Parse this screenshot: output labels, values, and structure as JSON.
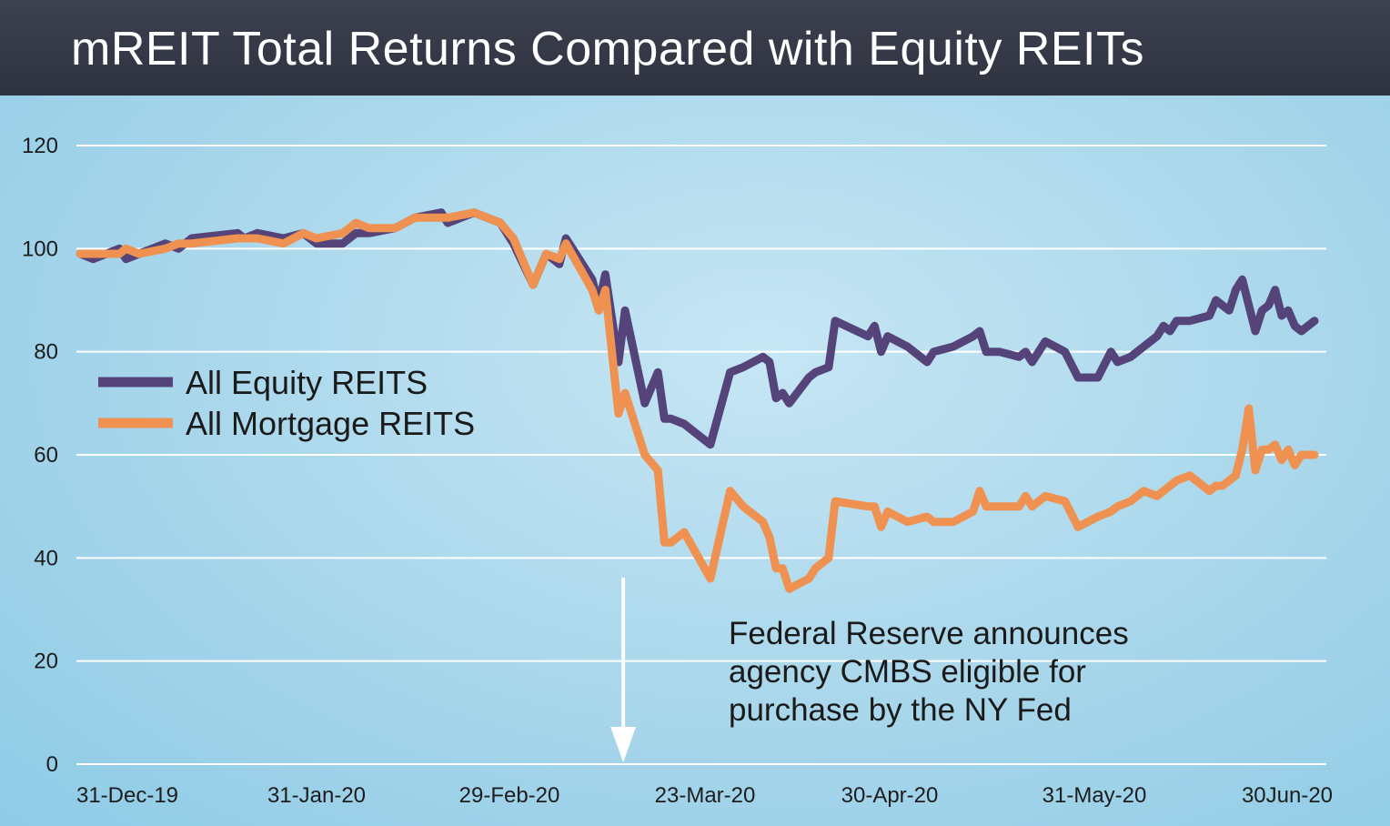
{
  "title": "mREIT Total Returns Compared with Equity REITs",
  "colors": {
    "equity": "#54447a",
    "mortgage": "#ef9150",
    "grid": "#ffffff",
    "arrow": "#ffffff"
  },
  "chart_data": {
    "type": "line",
    "title": "mREIT Total Returns Compared with Equity REITs",
    "xlabel": "",
    "ylabel": "",
    "ylim": [
      0,
      120
    ],
    "yticks": [
      0,
      20,
      40,
      60,
      80,
      100,
      120
    ],
    "xlim": [
      "2019-12-31",
      "2020-07-06"
    ],
    "x_tick_labels": [
      {
        "date": "2019-12-31",
        "label": "31-Dec-19"
      },
      {
        "date": "2020-01-31",
        "label": "31-Jan-20"
      },
      {
        "date": "2020-02-29",
        "label": "29-Feb-20"
      },
      {
        "date": "2020-03-23",
        "label": "23-Mar-20"
      },
      {
        "date": "2020-04-30",
        "label": "30-Apr-20"
      },
      {
        "date": "2020-05-31",
        "label": "31-May-20"
      },
      {
        "date": "2020-06-30",
        "label": "30Jun-20"
      }
    ],
    "grid": true,
    "legend": "left-center",
    "series": [
      {
        "name": "All Equity REITS",
        "points": [
          [
            "2019-12-31",
            99
          ],
          [
            "2020-01-02",
            98
          ],
          [
            "2020-01-06",
            100
          ],
          [
            "2020-01-07",
            98
          ],
          [
            "2020-01-09",
            99
          ],
          [
            "2020-01-13",
            101
          ],
          [
            "2020-01-15",
            100
          ],
          [
            "2020-01-17",
            102
          ],
          [
            "2020-01-24",
            103
          ],
          [
            "2020-01-25",
            102
          ],
          [
            "2020-01-27",
            103
          ],
          [
            "2020-01-31",
            102
          ],
          [
            "2020-02-03",
            103
          ],
          [
            "2020-02-05",
            101
          ],
          [
            "2020-02-09",
            101
          ],
          [
            "2020-02-11",
            103
          ],
          [
            "2020-02-13",
            103
          ],
          [
            "2020-02-17",
            104
          ],
          [
            "2020-02-20",
            106
          ],
          [
            "2020-02-24",
            107
          ],
          [
            "2020-02-25",
            105
          ],
          [
            "2020-02-29",
            107
          ],
          [
            "2020-03-04",
            105
          ],
          [
            "2020-03-06",
            101
          ],
          [
            "2020-03-09",
            93
          ],
          [
            "2020-03-11",
            99
          ],
          [
            "2020-03-13",
            97
          ],
          [
            "2020-03-14",
            102
          ],
          [
            "2020-03-18",
            94
          ],
          [
            "2020-03-19",
            89
          ],
          [
            "2020-03-20",
            95
          ],
          [
            "2020-03-22",
            78
          ],
          [
            "2020-03-23",
            88
          ],
          [
            "2020-03-26",
            70
          ],
          [
            "2020-03-28",
            76
          ],
          [
            "2020-03-29",
            67
          ],
          [
            "2020-03-30",
            67
          ],
          [
            "2020-04-01",
            66
          ],
          [
            "2020-04-05",
            62
          ],
          [
            "2020-04-08",
            76
          ],
          [
            "2020-04-10",
            77
          ],
          [
            "2020-04-13",
            79
          ],
          [
            "2020-04-14",
            78
          ],
          [
            "2020-04-15",
            71
          ],
          [
            "2020-04-16",
            72
          ],
          [
            "2020-04-17",
            70
          ],
          [
            "2020-04-20",
            75
          ],
          [
            "2020-04-21",
            76
          ],
          [
            "2020-04-23",
            77
          ],
          [
            "2020-04-24",
            86
          ],
          [
            "2020-04-29",
            83
          ],
          [
            "2020-04-30",
            85
          ],
          [
            "2020-05-01",
            80
          ],
          [
            "2020-05-02",
            83
          ],
          [
            "2020-05-05",
            81
          ],
          [
            "2020-05-08",
            78
          ],
          [
            "2020-05-09",
            80
          ],
          [
            "2020-05-12",
            81
          ],
          [
            "2020-05-15",
            83
          ],
          [
            "2020-05-16",
            84
          ],
          [
            "2020-05-17",
            80
          ],
          [
            "2020-05-19",
            80
          ],
          [
            "2020-05-22",
            79
          ],
          [
            "2020-05-23",
            80
          ],
          [
            "2020-05-24",
            78
          ],
          [
            "2020-05-26",
            82
          ],
          [
            "2020-05-29",
            80
          ],
          [
            "2020-05-31",
            75
          ],
          [
            "2020-06-03",
            75
          ],
          [
            "2020-06-05",
            80
          ],
          [
            "2020-06-06",
            78
          ],
          [
            "2020-06-08",
            79
          ],
          [
            "2020-06-10",
            81
          ],
          [
            "2020-06-12",
            83
          ],
          [
            "2020-06-13",
            85
          ],
          [
            "2020-06-14",
            84
          ],
          [
            "2020-06-15",
            86
          ],
          [
            "2020-06-17",
            86
          ],
          [
            "2020-06-20",
            87
          ],
          [
            "2020-06-21",
            90
          ],
          [
            "2020-06-22",
            89
          ],
          [
            "2020-06-23",
            88
          ],
          [
            "2020-06-24",
            92
          ],
          [
            "2020-06-25",
            94
          ],
          [
            "2020-06-26",
            89
          ],
          [
            "2020-06-27",
            84
          ],
          [
            "2020-06-28",
            88
          ],
          [
            "2020-06-29",
            89
          ],
          [
            "2020-06-30",
            92
          ],
          [
            "2020-07-01",
            87
          ],
          [
            "2020-07-02",
            88
          ],
          [
            "2020-07-03",
            85
          ],
          [
            "2020-07-04",
            84
          ],
          [
            "2020-07-05",
            85
          ],
          [
            "2020-07-06",
            86
          ]
        ]
      },
      {
        "name": "All Mortgage REITS",
        "points": [
          [
            "2019-12-31",
            99
          ],
          [
            "2020-01-02",
            99
          ],
          [
            "2020-01-06",
            99
          ],
          [
            "2020-01-07",
            100
          ],
          [
            "2020-01-09",
            99
          ],
          [
            "2020-01-13",
            100
          ],
          [
            "2020-01-15",
            101
          ],
          [
            "2020-01-17",
            101
          ],
          [
            "2020-01-24",
            102
          ],
          [
            "2020-01-25",
            102
          ],
          [
            "2020-01-27",
            102
          ],
          [
            "2020-01-31",
            101
          ],
          [
            "2020-02-03",
            103
          ],
          [
            "2020-02-05",
            102
          ],
          [
            "2020-02-09",
            103
          ],
          [
            "2020-02-11",
            105
          ],
          [
            "2020-02-13",
            104
          ],
          [
            "2020-02-17",
            104
          ],
          [
            "2020-02-20",
            106
          ],
          [
            "2020-02-24",
            106
          ],
          [
            "2020-02-25",
            106
          ],
          [
            "2020-02-29",
            107
          ],
          [
            "2020-03-04",
            105
          ],
          [
            "2020-03-06",
            102
          ],
          [
            "2020-03-09",
            93
          ],
          [
            "2020-03-11",
            99
          ],
          [
            "2020-03-13",
            98
          ],
          [
            "2020-03-14",
            101
          ],
          [
            "2020-03-18",
            92
          ],
          [
            "2020-03-19",
            88
          ],
          [
            "2020-03-20",
            92
          ],
          [
            "2020-03-22",
            68
          ],
          [
            "2020-03-23",
            72
          ],
          [
            "2020-03-26",
            60
          ],
          [
            "2020-03-28",
            57
          ],
          [
            "2020-03-29",
            43
          ],
          [
            "2020-03-30",
            43
          ],
          [
            "2020-04-01",
            45
          ],
          [
            "2020-04-05",
            36
          ],
          [
            "2020-04-08",
            53
          ],
          [
            "2020-04-10",
            50
          ],
          [
            "2020-04-13",
            47
          ],
          [
            "2020-04-14",
            44
          ],
          [
            "2020-04-15",
            38
          ],
          [
            "2020-04-16",
            38
          ],
          [
            "2020-04-17",
            34
          ],
          [
            "2020-04-20",
            36
          ],
          [
            "2020-04-21",
            38
          ],
          [
            "2020-04-23",
            40
          ],
          [
            "2020-04-24",
            51
          ],
          [
            "2020-04-29",
            50
          ],
          [
            "2020-04-30",
            50
          ],
          [
            "2020-05-01",
            46
          ],
          [
            "2020-05-02",
            49
          ],
          [
            "2020-05-05",
            47
          ],
          [
            "2020-05-08",
            48
          ],
          [
            "2020-05-09",
            47
          ],
          [
            "2020-05-12",
            47
          ],
          [
            "2020-05-15",
            49
          ],
          [
            "2020-05-16",
            53
          ],
          [
            "2020-05-17",
            50
          ],
          [
            "2020-05-19",
            50
          ],
          [
            "2020-05-22",
            50
          ],
          [
            "2020-05-23",
            52
          ],
          [
            "2020-05-24",
            50
          ],
          [
            "2020-05-26",
            52
          ],
          [
            "2020-05-29",
            51
          ],
          [
            "2020-05-31",
            46
          ],
          [
            "2020-06-03",
            48
          ],
          [
            "2020-06-05",
            49
          ],
          [
            "2020-06-06",
            50
          ],
          [
            "2020-06-08",
            51
          ],
          [
            "2020-06-10",
            53
          ],
          [
            "2020-06-12",
            52
          ],
          [
            "2020-06-13",
            53
          ],
          [
            "2020-06-14",
            54
          ],
          [
            "2020-06-15",
            55
          ],
          [
            "2020-06-17",
            56
          ],
          [
            "2020-06-20",
            53
          ],
          [
            "2020-06-21",
            54
          ],
          [
            "2020-06-22",
            54
          ],
          [
            "2020-06-23",
            55
          ],
          [
            "2020-06-24",
            56
          ],
          [
            "2020-06-25",
            61
          ],
          [
            "2020-06-26",
            69
          ],
          [
            "2020-06-27",
            57
          ],
          [
            "2020-06-28",
            61
          ],
          [
            "2020-06-29",
            61
          ],
          [
            "2020-06-30",
            62
          ],
          [
            "2020-07-01",
            59
          ],
          [
            "2020-07-02",
            61
          ],
          [
            "2020-07-03",
            58
          ],
          [
            "2020-07-04",
            60
          ],
          [
            "2020-07-05",
            60
          ],
          [
            "2020-07-06",
            60
          ]
        ]
      }
    ],
    "annotation": {
      "date": "2020-03-23",
      "lines": [
        "Federal Reserve announces",
        "agency CMBS eligible for",
        "purchase by the NY Fed"
      ]
    }
  }
}
